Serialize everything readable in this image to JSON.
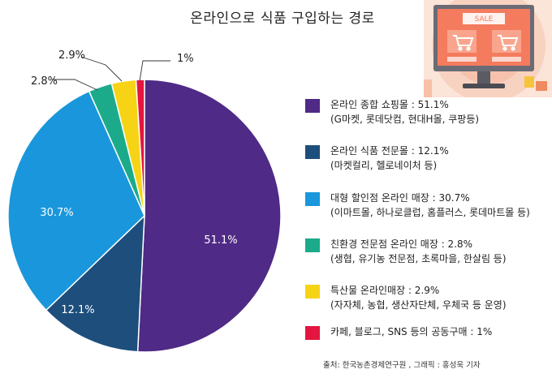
{
  "chart_data": {
    "type": "pie",
    "title": "온라인으로 식품 구입하는 경로",
    "start_angle_deg": 90,
    "direction": "clockwise",
    "slices": [
      {
        "value": 51.1,
        "label": "51.1%",
        "color": "#4f2a86",
        "legend": "온라인 종합 쇼핑몰 : 51.1%",
        "legend_sub": "(G마켓, 롯데닷컴, 현대H몰, 쿠팡등)"
      },
      {
        "value": 12.1,
        "label": "12.1%",
        "color": "#1d4e7c",
        "legend": "온라인 식품 전문몰 : 12.1%",
        "legend_sub": "(마켓컬리, 헬로네이처 등)"
      },
      {
        "value": 30.7,
        "label": "30.7%",
        "color": "#1a97dc",
        "legend": "대형 할인점 온라인 매장 : 30.7%",
        "legend_sub": "(이마트몰, 하나로클럽, 홈플러스, 롯데마트몰 등)"
      },
      {
        "value": 2.8,
        "label": "2.8%",
        "color": "#1bab8a",
        "legend": "친환경 전문점 온라인 매장 : 2.8%",
        "legend_sub": "(생협, 유기농 전문점, 초록마을, 한살림 등)"
      },
      {
        "value": 2.9,
        "label": "2.9%",
        "color": "#f7d316",
        "legend": "특산물 온라인매장 : 2.9%",
        "legend_sub": "(자자체, 농협, 생산자단체, 우체국 등 운영)"
      },
      {
        "value": 1.0,
        "label": "1%",
        "color": "#e4153e",
        "legend": "카페, 블로그, SNS 등의 공동구매 : 1%",
        "legend_sub": ""
      }
    ]
  },
  "source": "출처: 한국농촌경제연구원 , 그래픽 : 홍성욱 기자",
  "monitor": {
    "sign": "SALE",
    "icons": [
      "shopping-cart-icon",
      "shopping-cart-icon"
    ]
  }
}
